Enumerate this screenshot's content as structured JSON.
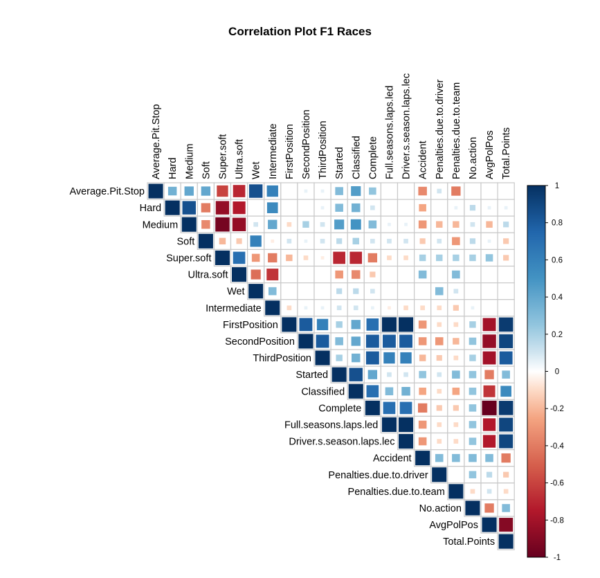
{
  "chart_data": {
    "type": "heatmap",
    "title": "Correlation Plot F1 Races",
    "variables": [
      "Average.Pit.Stop",
      "Hard",
      "Medium",
      "Soft",
      "Super.soft",
      "Ultra.soft",
      "Wet",
      "Intermediate",
      "FirstPosition",
      "SecondPosition",
      "ThirdPosition",
      "Started",
      "Classified",
      "Complete",
      "Full.seasons.laps.led",
      "Driver.s.season.laps.led",
      "Accident",
      "Penalties.due.to.driver",
      "Penalties.due.to.team",
      "No.action",
      "AvgPolPos",
      "Total.Points"
    ],
    "display_labels": [
      "Average.Pit.Stop",
      "Hard",
      "Medium",
      "Soft",
      "Super.soft",
      "Ultra.soft",
      "Wet",
      "Intermediate",
      "FirstPosition",
      "SecondPosition",
      "ThirdPosition",
      "Started",
      "Classified",
      "Complete",
      "Full.seasons.laps.led",
      "Driver.s.season.laps.lec",
      "Accident",
      "Penalties.due.to.driver",
      "Penalties.due.to.team",
      "No.action",
      "AvgPolPos",
      "Total.Points"
    ],
    "matrix_shape": "upper",
    "method": "square",
    "colorbar": {
      "min": -1,
      "max": 1,
      "ticks": [
        1,
        0.8,
        0.6,
        0.4,
        0.2,
        0,
        -0.2,
        -0.4,
        -0.6,
        -0.8,
        -1
      ],
      "tick_labels": [
        "1",
        "0.8",
        "0.6",
        "0.4",
        "0.2",
        "0",
        "-0.2",
        "-0.4",
        "-0.6",
        "-0.8",
        "-1"
      ]
    },
    "values": [
      [
        1,
        0.35,
        0.4,
        0.4,
        -0.6,
        -0.7,
        0.85,
        0.6,
        0,
        0.05,
        0.05,
        0.3,
        0.45,
        0.25,
        0,
        0,
        -0.35,
        0.1,
        -0.4,
        0,
        0,
        0
      ],
      [
        null,
        1,
        0.85,
        -0.4,
        -0.85,
        -0.75,
        0,
        0.55,
        0,
        0,
        0.05,
        0.3,
        0.35,
        0.1,
        0,
        0,
        -0.25,
        0,
        0.05,
        0.15,
        0.05,
        0.05
      ],
      [
        null,
        null,
        1,
        -0.35,
        -0.95,
        -0.85,
        0.1,
        0.4,
        -0.1,
        0.2,
        0.1,
        0.45,
        0.5,
        0.3,
        0.05,
        0.05,
        -0.3,
        -0.2,
        -0.2,
        0.1,
        -0.2,
        0.15
      ],
      [
        null,
        null,
        null,
        1,
        -0.2,
        -0.15,
        0.6,
        -0.05,
        0.1,
        0.05,
        0.1,
        0.15,
        0.2,
        0.1,
        0.1,
        0.1,
        -0.15,
        0.1,
        -0.3,
        0.15,
        0.05,
        -0.15
      ],
      [
        null,
        null,
        null,
        null,
        1,
        0.7,
        -0.3,
        -0.4,
        -0.2,
        -0.1,
        -0.05,
        -0.7,
        -0.7,
        -0.4,
        -0.1,
        -0.1,
        0.2,
        0.2,
        0.2,
        0.2,
        0.25,
        -0.15
      ],
      [
        null,
        null,
        null,
        null,
        null,
        1,
        -0.45,
        -0.65,
        0,
        0,
        0,
        -0.3,
        -0.35,
        -0.15,
        0,
        0,
        0.3,
        0,
        0.3,
        0,
        0,
        0
      ],
      [
        null,
        null,
        null,
        null,
        null,
        null,
        1,
        0.3,
        0,
        0,
        0,
        0.15,
        0.15,
        0.1,
        0,
        0,
        0,
        0.3,
        0.1,
        0,
        0,
        0
      ],
      [
        null,
        null,
        null,
        null,
        null,
        null,
        null,
        1,
        -0.1,
        0.05,
        0.05,
        0.1,
        0.1,
        0.05,
        -0.05,
        -0.1,
        -0.1,
        -0.1,
        -0.15,
        0.05,
        0,
        0
      ],
      [
        null,
        null,
        null,
        null,
        null,
        null,
        null,
        null,
        1,
        0.8,
        0.6,
        0.2,
        0.4,
        0.7,
        1,
        1,
        -0.3,
        -0.1,
        -0.1,
        0.2,
        -0.8,
        0.95
      ],
      [
        null,
        null,
        null,
        null,
        null,
        null,
        null,
        null,
        null,
        1,
        0.8,
        0.3,
        0.4,
        0.8,
        0.8,
        0.8,
        -0.3,
        -0.3,
        -0.2,
        0.25,
        -0.85,
        0.9
      ],
      [
        null,
        null,
        null,
        null,
        null,
        null,
        null,
        null,
        null,
        null,
        1,
        0.2,
        0.35,
        0.8,
        0.6,
        0.6,
        -0.2,
        -0.15,
        -0.1,
        0.2,
        -0.8,
        0.8
      ],
      [
        null,
        null,
        null,
        null,
        null,
        null,
        null,
        null,
        null,
        null,
        null,
        1,
        0.85,
        0.4,
        0.1,
        0.1,
        0.25,
        0.1,
        0.3,
        0.25,
        -0.4,
        0.3
      ],
      [
        null,
        null,
        null,
        null,
        null,
        null,
        null,
        null,
        null,
        null,
        null,
        null,
        1,
        0.7,
        0.3,
        0.35,
        -0.25,
        -0.1,
        -0.25,
        0.25,
        -0.65,
        0.55
      ],
      [
        null,
        null,
        null,
        null,
        null,
        null,
        null,
        null,
        null,
        null,
        null,
        null,
        null,
        1,
        0.7,
        0.7,
        -0.4,
        -0.15,
        -0.15,
        0.25,
        -1,
        0.95
      ],
      [
        null,
        null,
        null,
        null,
        null,
        null,
        null,
        null,
        null,
        null,
        null,
        null,
        null,
        null,
        1,
        1,
        -0.3,
        -0.1,
        -0.1,
        0.25,
        -0.75,
        0.9
      ],
      [
        null,
        null,
        null,
        null,
        null,
        null,
        null,
        null,
        null,
        null,
        null,
        null,
        null,
        null,
        null,
        1,
        -0.3,
        -0.1,
        -0.1,
        0.25,
        -0.75,
        0.9
      ],
      [
        null,
        null,
        null,
        null,
        null,
        null,
        null,
        null,
        null,
        null,
        null,
        null,
        null,
        null,
        null,
        null,
        1,
        0.3,
        0.3,
        0.3,
        0.3,
        -0.4
      ],
      [
        null,
        null,
        null,
        null,
        null,
        null,
        null,
        null,
        null,
        null,
        null,
        null,
        null,
        null,
        null,
        null,
        null,
        1,
        0,
        0.25,
        0.15,
        -0.15
      ],
      [
        null,
        null,
        null,
        null,
        null,
        null,
        null,
        null,
        null,
        null,
        null,
        null,
        null,
        null,
        null,
        null,
        null,
        null,
        1,
        -0.1,
        0.1,
        -0.1
      ],
      [
        null,
        null,
        null,
        null,
        null,
        null,
        null,
        null,
        null,
        null,
        null,
        null,
        null,
        null,
        null,
        null,
        null,
        null,
        null,
        1,
        -0.4,
        0.3
      ],
      [
        null,
        null,
        null,
        null,
        null,
        null,
        null,
        null,
        null,
        null,
        null,
        null,
        null,
        null,
        null,
        null,
        null,
        null,
        null,
        null,
        1,
        -0.9
      ],
      [
        null,
        null,
        null,
        null,
        null,
        null,
        null,
        null,
        null,
        null,
        null,
        null,
        null,
        null,
        null,
        null,
        null,
        null,
        null,
        null,
        null,
        1
      ]
    ]
  }
}
